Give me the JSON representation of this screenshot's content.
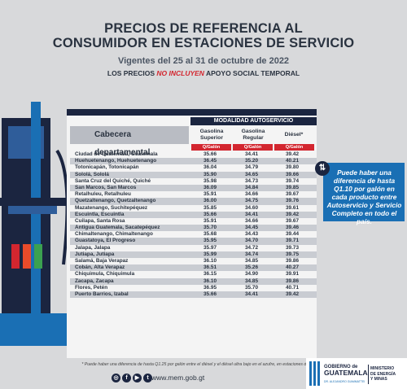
{
  "header": {
    "title_line1": "PRECIOS DE REFERENCIA AL",
    "title_line2": "CONSUMIDOR EN ESTACIONES DE SERVICIO",
    "validity": "Vigentes del 25 al 31 de octubre de 2022",
    "notice_pre": "LOS PRECIOS ",
    "notice_red": "NO INCLUYEN",
    "notice_post": " APOYO SOCIAL TEMPORAL"
  },
  "table": {
    "band_label": "MODALIDAD AUTOSERVICIO",
    "column_main": "Cabecera departamental",
    "col1": "Gasolina Superior",
    "col2": "Gasolina Regular",
    "col3": "Diésel*",
    "unit": "Q/Galón",
    "rows": [
      {
        "dep": "Ciudad de Guatemala, Guatemala",
        "sup": "35.66",
        "reg": "34.41",
        "dsl": "39.42"
      },
      {
        "dep": "Huehuetenango, Huehuetenango",
        "sup": "36.45",
        "reg": "35.20",
        "dsl": "40.21"
      },
      {
        "dep": "Totonicapán, Totonicapán",
        "sup": "36.04",
        "reg": "34.79",
        "dsl": "39.80"
      },
      {
        "dep": "Sololá, Sololá",
        "sup": "35.90",
        "reg": "34.65",
        "dsl": "39.66"
      },
      {
        "dep": "Santa Cruz del Quiché, Quiché",
        "sup": "35.98",
        "reg": "34.73",
        "dsl": "39.74"
      },
      {
        "dep": "San Marcos, San Marcos",
        "sup": "36.09",
        "reg": "34.84",
        "dsl": "39.85"
      },
      {
        "dep": "Retalhuleu, Retalhuleu",
        "sup": "35.91",
        "reg": "34.66",
        "dsl": "39.67"
      },
      {
        "dep": "Quetzaltenango, Quetzaltenango",
        "sup": "36.00",
        "reg": "34.75",
        "dsl": "39.76"
      },
      {
        "dep": "Mazatenango, Suchitepéquez",
        "sup": "35.85",
        "reg": "34.60",
        "dsl": "39.61"
      },
      {
        "dep": "Escuintla, Escuintla",
        "sup": "35.66",
        "reg": "34.41",
        "dsl": "39.42"
      },
      {
        "dep": "Cuilapa, Santa Rosa",
        "sup": "35.91",
        "reg": "34.66",
        "dsl": "39.67"
      },
      {
        "dep": "Antigua Guatemala, Sacatepéquez",
        "sup": "35.70",
        "reg": "34.45",
        "dsl": "39.46"
      },
      {
        "dep": "Chimaltenango, Chimaltenango",
        "sup": "35.68",
        "reg": "34.43",
        "dsl": "39.44"
      },
      {
        "dep": "Guastatoya, El Progreso",
        "sup": "35.95",
        "reg": "34.70",
        "dsl": "39.71"
      },
      {
        "dep": "Jalapa, Jalapa",
        "sup": "35.97",
        "reg": "34.72",
        "dsl": "39.73"
      },
      {
        "dep": "Jutiapa, Jutiapa",
        "sup": "35.99",
        "reg": "34.74",
        "dsl": "39.75"
      },
      {
        "dep": "Salamá, Baja Verapaz",
        "sup": "36.10",
        "reg": "34.85",
        "dsl": "39.86"
      },
      {
        "dep": "Cobán, Alta Verapaz",
        "sup": "36.51",
        "reg": "35.26",
        "dsl": "40.27"
      },
      {
        "dep": "Chiquimula, Chiquimula",
        "sup": "36.15",
        "reg": "34.90",
        "dsl": "39.91"
      },
      {
        "dep": "Zacapa, Zacapa",
        "sup": "36.10",
        "reg": "34.85",
        "dsl": "39.86"
      },
      {
        "dep": "Flores, Petén",
        "sup": "36.95",
        "reg": "35.70",
        "dsl": "40.71"
      },
      {
        "dep": "Puerto Barrios, Izabal",
        "sup": "35.66",
        "reg": "34.41",
        "dsl": "39.42"
      }
    ]
  },
  "callout": {
    "icon": "info-arrows-icon",
    "text": "Puede haber una diferencia de hasta Q1.10 por galón en cada producto entre Autoservicio y Servicio Completo en todo el país."
  },
  "footnote": "* Puede haber una diferencia de hasta Q1.25 por galón entre el diésel y el diésel ultra bajo en el azufre, en estaciones de servicio.",
  "footer": {
    "website": "www.mem.gob.gt",
    "social_icons": [
      "instagram-icon",
      "facebook-icon",
      "youtube-icon",
      "twitter-icon"
    ],
    "logo_line1": "GOBIERNO de",
    "logo_line2": "GUATEMALA",
    "logo_sub": "DR. ALEJANDRO GIAMMATTEI",
    "ministry_line1": "MINISTERIO",
    "ministry_line2": "DE ENERGÍA",
    "ministry_line3": "Y MINAS"
  },
  "colors": {
    "navy": "#1b2540",
    "red": "#d3262f",
    "blue": "#1a6fb4",
    "background": "#d8d9db"
  }
}
